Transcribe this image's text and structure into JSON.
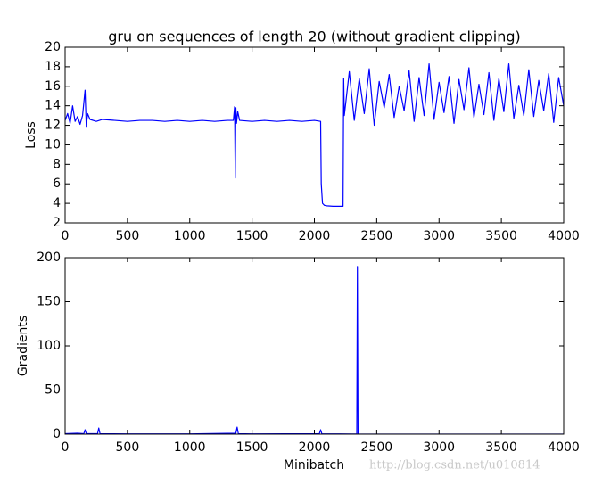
{
  "chart_data": [
    {
      "type": "line",
      "title": "gru on sequences of length 20 (without gradient clipping)",
      "ylabel": "Loss",
      "color": "#0000ff",
      "x": [
        0,
        20,
        40,
        60,
        80,
        100,
        120,
        140,
        160,
        170,
        180,
        200,
        250,
        300,
        400,
        500,
        600,
        700,
        800,
        900,
        1000,
        1100,
        1200,
        1300,
        1350,
        1360,
        1365,
        1370,
        1375,
        1385,
        1400,
        1500,
        1600,
        1700,
        1800,
        1900,
        2000,
        2050,
        2055,
        2065,
        2080,
        2100,
        2150,
        2200,
        2230,
        2235,
        2240,
        2280,
        2320,
        2360,
        2400,
        2440,
        2480,
        2520,
        2560,
        2600,
        2640,
        2680,
        2720,
        2760,
        2800,
        2840,
        2880,
        2920,
        2960,
        3000,
        3040,
        3080,
        3120,
        3160,
        3200,
        3240,
        3280,
        3320,
        3360,
        3400,
        3440,
        3480,
        3520,
        3560,
        3600,
        3640,
        3680,
        3720,
        3760,
        3800,
        3840,
        3880,
        3920,
        3960,
        4000
      ],
      "values": [
        12.5,
        13.2,
        12.2,
        14.0,
        12.4,
        12.9,
        12.1,
        13.0,
        15.6,
        11.8,
        13.2,
        12.6,
        12.4,
        12.6,
        12.5,
        12.4,
        12.5,
        12.5,
        12.4,
        12.5,
        12.4,
        12.5,
        12.4,
        12.5,
        12.5,
        13.9,
        6.6,
        13.8,
        12.2,
        13.4,
        12.5,
        12.4,
        12.5,
        12.4,
        12.5,
        12.4,
        12.5,
        12.4,
        6.0,
        4.0,
        3.8,
        3.75,
        3.7,
        3.7,
        3.7,
        16.8,
        13.0,
        17.5,
        12.5,
        16.8,
        13.2,
        17.8,
        12.0,
        16.5,
        13.8,
        17.2,
        12.8,
        16.0,
        13.5,
        17.6,
        12.4,
        16.9,
        13.0,
        18.3,
        12.6,
        16.4,
        13.3,
        17.0,
        12.2,
        16.7,
        13.6,
        17.9,
        12.8,
        16.2,
        13.1,
        17.4,
        12.5,
        16.8,
        13.4,
        18.3,
        12.7,
        16.1,
        13.0,
        17.7,
        12.9,
        16.6,
        13.5,
        17.3,
        12.3,
        16.9,
        14.0
      ],
      "xlim": [
        0,
        4000
      ],
      "xticks": [
        0,
        500,
        1000,
        1500,
        2000,
        2500,
        3000,
        3500,
        4000
      ],
      "ylim": [
        2,
        20
      ],
      "yticks": [
        2,
        4,
        6,
        8,
        10,
        12,
        14,
        16,
        18,
        20
      ]
    },
    {
      "type": "line",
      "xlabel": "Minibatch",
      "ylabel": "Gradients",
      "color": "#0000ff",
      "x": [
        0,
        100,
        150,
        160,
        170,
        260,
        270,
        280,
        500,
        1000,
        1370,
        1380,
        1390,
        1500,
        2040,
        2050,
        2060,
        2300,
        2340,
        2345,
        2350,
        2400,
        3000,
        4000
      ],
      "values": [
        0.5,
        1,
        0.5,
        5,
        0.5,
        0.5,
        7,
        0.5,
        0.3,
        0.3,
        1,
        8,
        0.5,
        0.3,
        0.5,
        5,
        0.3,
        0.2,
        0.2,
        190,
        0,
        0,
        0,
        0
      ],
      "xlim": [
        0,
        4000
      ],
      "xticks": [
        0,
        500,
        1000,
        1500,
        2000,
        2500,
        3000,
        3500,
        4000
      ],
      "ylim": [
        0,
        200
      ],
      "yticks": [
        0,
        50,
        100,
        150,
        200
      ]
    }
  ],
  "watermark": "http://blog.csdn.net/u010814"
}
